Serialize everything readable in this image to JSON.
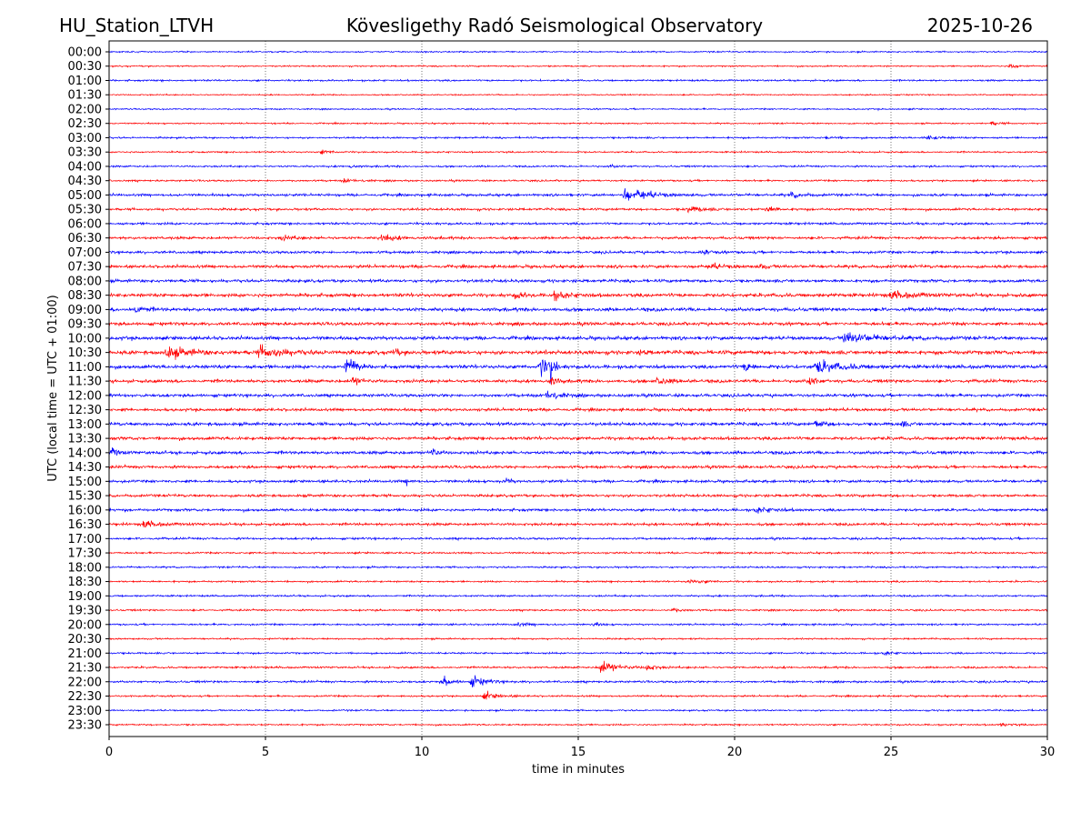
{
  "header": {
    "station": "HU_Station_LTVH",
    "observatory": "Kövesligethy Radó Seismological Observatory",
    "date": "2025-10-26"
  },
  "chart_data": {
    "type": "line",
    "title": "Kövesligethy Radó Seismological Observatory",
    "xlabel": "time in minutes",
    "ylabel": "UTC (local time = UTC + 01:00)",
    "xlim": [
      0,
      30
    ],
    "xticks": [
      "0",
      "5",
      "10",
      "15",
      "20",
      "25",
      "30"
    ],
    "grid": "vertical dotted at x ticks",
    "colors": {
      "even_rows": "#0000ff",
      "odd_rows": "#ff0000"
    },
    "rows": [
      {
        "label": "00:00",
        "noise": 0.8
      },
      {
        "label": "00:30",
        "noise": 0.8
      },
      {
        "label": "01:00",
        "noise": 1.0
      },
      {
        "label": "01:30",
        "noise": 0.7
      },
      {
        "label": "02:00",
        "noise": 0.8
      },
      {
        "label": "02:30",
        "noise": 0.8
      },
      {
        "label": "03:00",
        "noise": 1.0
      },
      {
        "label": "03:30",
        "noise": 0.9
      },
      {
        "label": "04:00",
        "noise": 1.0
      },
      {
        "label": "04:30",
        "noise": 1.0
      },
      {
        "label": "05:00",
        "noise": 1.4
      },
      {
        "label": "05:30",
        "noise": 1.3
      },
      {
        "label": "06:00",
        "noise": 1.3
      },
      {
        "label": "06:30",
        "noise": 1.5
      },
      {
        "label": "07:00",
        "noise": 1.5
      },
      {
        "label": "07:30",
        "noise": 1.7
      },
      {
        "label": "08:00",
        "noise": 1.7
      },
      {
        "label": "08:30",
        "noise": 2.0
      },
      {
        "label": "09:00",
        "noise": 2.0
      },
      {
        "label": "09:30",
        "noise": 1.8
      },
      {
        "label": "10:00",
        "noise": 2.0
      },
      {
        "label": "10:30",
        "noise": 2.2
      },
      {
        "label": "11:00",
        "noise": 2.0
      },
      {
        "label": "11:30",
        "noise": 1.8
      },
      {
        "label": "12:00",
        "noise": 1.7
      },
      {
        "label": "12:30",
        "noise": 1.6
      },
      {
        "label": "13:00",
        "noise": 1.8
      },
      {
        "label": "13:30",
        "noise": 1.8
      },
      {
        "label": "14:00",
        "noise": 1.8
      },
      {
        "label": "14:30",
        "noise": 1.6
      },
      {
        "label": "15:00",
        "noise": 1.5
      },
      {
        "label": "15:30",
        "noise": 1.5
      },
      {
        "label": "16:00",
        "noise": 1.5
      },
      {
        "label": "16:30",
        "noise": 1.5
      },
      {
        "label": "17:00",
        "noise": 1.2
      },
      {
        "label": "17:30",
        "noise": 1.0
      },
      {
        "label": "18:00",
        "noise": 1.0
      },
      {
        "label": "18:30",
        "noise": 1.0
      },
      {
        "label": "19:00",
        "noise": 1.0
      },
      {
        "label": "19:30",
        "noise": 1.0
      },
      {
        "label": "20:00",
        "noise": 1.0
      },
      {
        "label": "20:30",
        "noise": 0.9
      },
      {
        "label": "21:00",
        "noise": 1.0
      },
      {
        "label": "21:30",
        "noise": 1.1
      },
      {
        "label": "22:00",
        "noise": 1.2
      },
      {
        "label": "22:30",
        "noise": 1.0
      },
      {
        "label": "23:00",
        "noise": 0.9
      },
      {
        "label": "23:30",
        "noise": 0.9
      }
    ],
    "events": [
      {
        "row": 1,
        "minute": 28.8,
        "amp": 3,
        "dur": 0.6
      },
      {
        "row": 5,
        "minute": 28.2,
        "amp": 2,
        "dur": 0.6
      },
      {
        "row": 6,
        "minute": 26.1,
        "amp": 2.5,
        "dur": 0.8
      },
      {
        "row": 6,
        "minute": 22.9,
        "amp": 1.5,
        "dur": 0.8
      },
      {
        "row": 7,
        "minute": 6.8,
        "amp": 2,
        "dur": 0.6
      },
      {
        "row": 8,
        "minute": 7.7,
        "amp": 1.5,
        "dur": 0.6
      },
      {
        "row": 8,
        "minute": 16.0,
        "amp": 1.5,
        "dur": 0.5
      },
      {
        "row": 9,
        "minute": 7.5,
        "amp": 2,
        "dur": 0.8
      },
      {
        "row": 10,
        "minute": 16.5,
        "amp": 10,
        "dur": 0.4
      },
      {
        "row": 10,
        "minute": 16.9,
        "amp": 5,
        "dur": 1.2
      },
      {
        "row": 10,
        "minute": 21.8,
        "amp": 3,
        "dur": 0.8
      },
      {
        "row": 11,
        "minute": 18.5,
        "amp": 4,
        "dur": 0.8
      },
      {
        "row": 11,
        "minute": 21.0,
        "amp": 3,
        "dur": 0.8
      },
      {
        "row": 13,
        "minute": 8.7,
        "amp": 4,
        "dur": 0.8
      },
      {
        "row": 13,
        "minute": 5.5,
        "amp": 2,
        "dur": 1.0
      },
      {
        "row": 14,
        "minute": 19.0,
        "amp": 3,
        "dur": 0.4
      },
      {
        "row": 15,
        "minute": 19.2,
        "amp": 3,
        "dur": 0.8
      },
      {
        "row": 15,
        "minute": 20.8,
        "amp": 3,
        "dur": 0.4
      },
      {
        "row": 17,
        "minute": 13.0,
        "amp": 4,
        "dur": 0.5
      },
      {
        "row": 17,
        "minute": 14.2,
        "amp": 4,
        "dur": 1.0
      },
      {
        "row": 17,
        "minute": 25.0,
        "amp": 4,
        "dur": 1.2
      },
      {
        "row": 18,
        "minute": 0.8,
        "amp": 5,
        "dur": 0.5
      },
      {
        "row": 20,
        "minute": 23.5,
        "amp": 6,
        "dur": 1.8
      },
      {
        "row": 21,
        "minute": 1.8,
        "amp": 6,
        "dur": 1.5
      },
      {
        "row": 21,
        "minute": 4.8,
        "amp": 6,
        "dur": 1.5
      },
      {
        "row": 21,
        "minute": 9.1,
        "amp": 4,
        "dur": 0.4
      },
      {
        "row": 21,
        "minute": 17.0,
        "amp": 3,
        "dur": 0.3
      },
      {
        "row": 22,
        "minute": 7.6,
        "amp": 14,
        "dur": 0.25
      },
      {
        "row": 22,
        "minute": 7.8,
        "amp": 13,
        "dur": 0.25
      },
      {
        "row": 22,
        "minute": 13.8,
        "amp": 13,
        "dur": 0.35
      },
      {
        "row": 22,
        "minute": 14.1,
        "amp": 18,
        "dur": 0.25
      },
      {
        "row": 22,
        "minute": 20.3,
        "amp": 4,
        "dur": 0.8
      },
      {
        "row": 22,
        "minute": 22.6,
        "amp": 7,
        "dur": 1.5
      },
      {
        "row": 23,
        "minute": 7.8,
        "amp": 5,
        "dur": 0.5
      },
      {
        "row": 23,
        "minute": 14.1,
        "amp": 5,
        "dur": 0.4
      },
      {
        "row": 23,
        "minute": 22.4,
        "amp": 5,
        "dur": 0.4
      },
      {
        "row": 23,
        "minute": 17.5,
        "amp": 3,
        "dur": 1.0
      },
      {
        "row": 24,
        "minute": 14.0,
        "amp": 5,
        "dur": 0.8
      },
      {
        "row": 26,
        "minute": 22.6,
        "amp": 5,
        "dur": 0.5
      },
      {
        "row": 26,
        "minute": 25.3,
        "amp": 3,
        "dur": 0.4
      },
      {
        "row": 28,
        "minute": 0.1,
        "amp": 4,
        "dur": 0.4
      },
      {
        "row": 28,
        "minute": 10.3,
        "amp": 7,
        "dur": 0.3
      },
      {
        "row": 30,
        "minute": 9.5,
        "amp": 3,
        "dur": 0.3
      },
      {
        "row": 30,
        "minute": 12.7,
        "amp": 3,
        "dur": 0.3
      },
      {
        "row": 32,
        "minute": 20.7,
        "amp": 3,
        "dur": 1.0
      },
      {
        "row": 33,
        "minute": 1.1,
        "amp": 4,
        "dur": 0.8
      },
      {
        "row": 37,
        "minute": 18.5,
        "amp": 2,
        "dur": 1.0
      },
      {
        "row": 39,
        "minute": 18.0,
        "amp": 2,
        "dur": 0.6
      },
      {
        "row": 40,
        "minute": 13.0,
        "amp": 2,
        "dur": 0.8
      },
      {
        "row": 40,
        "minute": 15.5,
        "amp": 2,
        "dur": 0.4
      },
      {
        "row": 42,
        "minute": 24.8,
        "amp": 2,
        "dur": 0.6
      },
      {
        "row": 43,
        "minute": 15.7,
        "amp": 8,
        "dur": 1.0
      },
      {
        "row": 43,
        "minute": 17.2,
        "amp": 4,
        "dur": 0.5
      },
      {
        "row": 44,
        "minute": 10.7,
        "amp": 5,
        "dur": 0.6
      },
      {
        "row": 44,
        "minute": 11.6,
        "amp": 6,
        "dur": 0.8
      },
      {
        "row": 45,
        "minute": 12.0,
        "amp": 4,
        "dur": 0.8
      },
      {
        "row": 47,
        "minute": 28.5,
        "amp": 2,
        "dur": 0.6
      }
    ]
  }
}
